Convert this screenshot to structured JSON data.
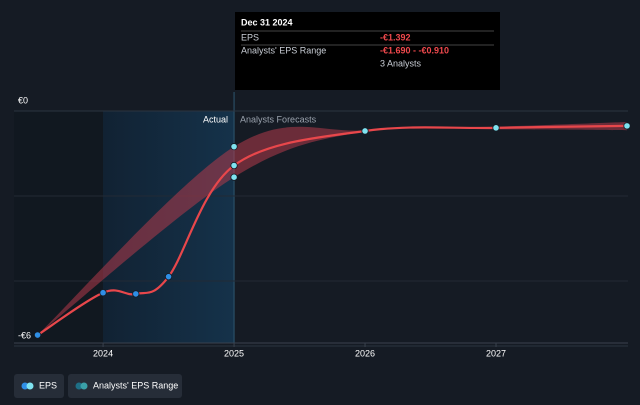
{
  "chart_data": {
    "type": "line",
    "xlim": [
      2023.32,
      2028.0
    ],
    "xticks": [
      2024,
      2025,
      2026,
      2027
    ],
    "ylim": [
      -6,
      0
    ],
    "yticks": [
      {
        "value": 0,
        "label": "€0"
      },
      {
        "value": -6,
        "label": "-€6"
      }
    ],
    "grid": true,
    "region_labels": [
      "Actual",
      "Analysts Forecasts"
    ],
    "series": [
      {
        "name": "EPS",
        "color": "#e8474b",
        "x": [
          2023.5,
          2024,
          2024.25,
          2024.5,
          2025,
          2026,
          2027,
          2028
        ],
        "values": [
          -5.72,
          -4.64,
          -4.67,
          -4.23,
          -1.392,
          -0.51,
          -0.43,
          -0.38
        ],
        "marker_colors": [
          "#2f8fe6",
          "#2f8fe6",
          "#2f8fe6",
          "#2f8fe6",
          "#7fe3f0",
          "#7fe3f0",
          "#7fe3f0",
          "#7fe3f0"
        ]
      }
    ],
    "range": {
      "name": "Analysts' EPS Range",
      "color": "#b33a4a",
      "x": [
        2023.5,
        2025,
        2026,
        2027,
        2028
      ],
      "low": [
        -5.72,
        -1.69,
        -0.52,
        -0.47,
        -0.49
      ],
      "high": [
        -5.72,
        -0.91,
        -0.49,
        -0.4,
        -0.28
      ]
    },
    "tooltip": {
      "date": "Dec 31 2024",
      "rows": [
        {
          "label": "EPS",
          "value": "-€1.392"
        },
        {
          "label": "Analysts' EPS Range",
          "value": "-€1.690 - -€0.910"
        },
        {
          "label": "",
          "value": "3 Analysts"
        }
      ]
    }
  }
}
